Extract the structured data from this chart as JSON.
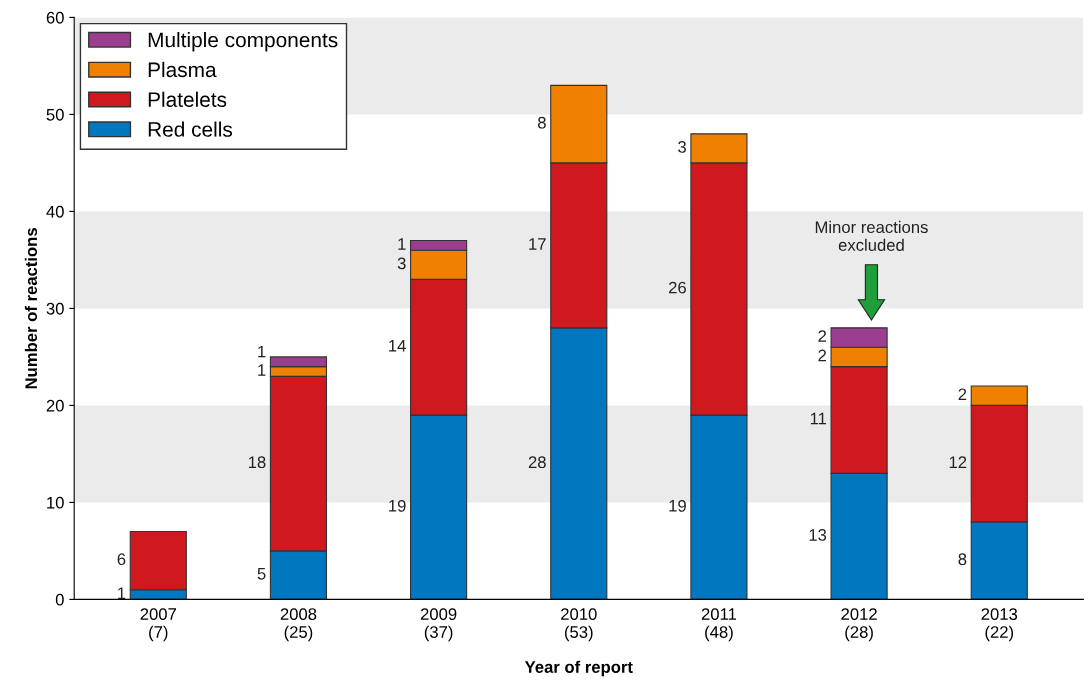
{
  "chart_data": {
    "type": "bar",
    "stacked": true,
    "xlabel": "Year of report",
    "ylabel": "Number of reactions",
    "categories": [
      "2007\n(7)",
      "2008\n(25)",
      "2009\n(37)",
      "2010\n(53)",
      "2011\n(48)",
      "2012\n(28)",
      "2013\n(22)"
    ],
    "series": [
      {
        "name": "Red cells",
        "color": "#0077bf",
        "values": [
          1,
          5,
          19,
          28,
          19,
          13,
          8
        ]
      },
      {
        "name": "Platelets",
        "color": "#d0181f",
        "values": [
          6,
          18,
          14,
          17,
          26,
          11,
          12
        ]
      },
      {
        "name": "Plasma",
        "color": "#f08000",
        "values": [
          null,
          1,
          3,
          8,
          3,
          2,
          2
        ]
      },
      {
        "name": "Multiple components",
        "color": "#9b3e8f",
        "values": [
          null,
          1,
          1,
          null,
          null,
          2,
          null
        ]
      }
    ],
    "data_labels": true,
    "ylim": [
      0,
      60
    ],
    "yticks": [
      0,
      10,
      20,
      30,
      40,
      50,
      60
    ],
    "grid": false,
    "legend": "top left",
    "bands": [
      {
        "axis": "y",
        "from": 10,
        "to": 20,
        "color": "#ebebeb"
      },
      {
        "axis": "y",
        "from": 30,
        "to": 40,
        "color": "#ebebeb"
      },
      {
        "axis": "y",
        "from": 50,
        "to": 60,
        "color": "#ebebeb"
      }
    ],
    "annotations": [
      "Minor reactions\nexcluded"
    ]
  }
}
